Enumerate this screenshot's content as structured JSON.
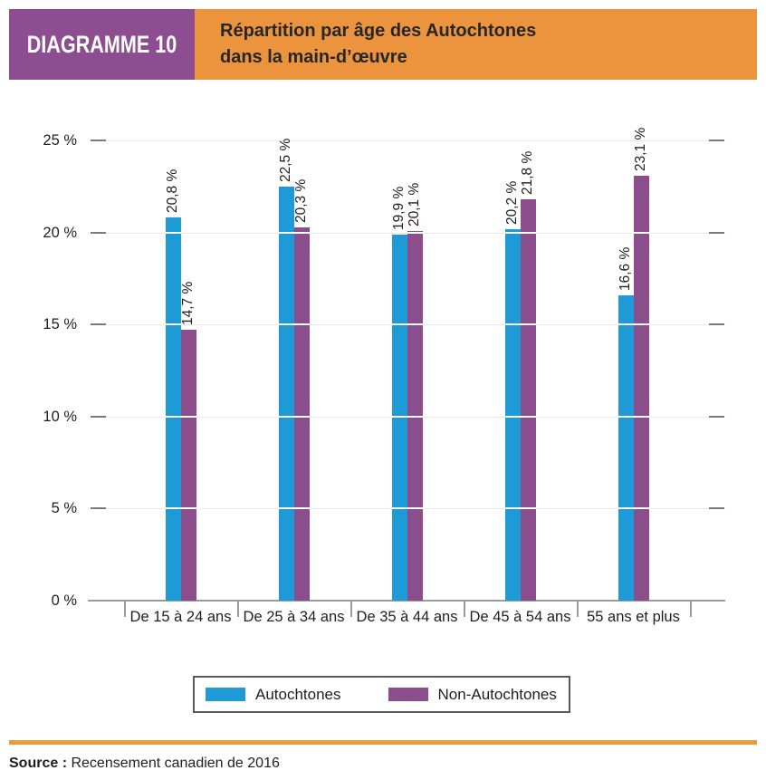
{
  "header": {
    "tag": "DIAGRAMME 10",
    "title_line1": "Répartition par âge des Autochtones",
    "title_line2": "dans la main-d’œuvre"
  },
  "chart_data": {
    "type": "bar",
    "title": "Répartition par âge des Autochtones dans la main-d’œuvre",
    "categories": [
      "De 15 à 24 ans",
      "De 25 à 34 ans",
      "De 35 à 44 ans",
      "De 45 à 54 ans",
      "55 ans et plus"
    ],
    "series": [
      {
        "name": "Autochtones",
        "color": "#1E9BD7",
        "values": [
          20.8,
          22.5,
          19.9,
          20.2,
          16.6
        ],
        "value_labels": [
          "20,8 %",
          "22,5 %",
          "19,9 %",
          "20,2 %",
          "16,6 %"
        ]
      },
      {
        "name": "Non-Autochtones",
        "color": "#8B4D8C",
        "values": [
          14.7,
          20.3,
          20.1,
          21.8,
          23.1
        ],
        "value_labels": [
          "14,7 %",
          "20,3 %",
          "20,1 %",
          "21,8 %",
          "23,1 %"
        ]
      }
    ],
    "y_ticks": [
      {
        "label": "0 %",
        "value": 0
      },
      {
        "label": "5 %",
        "value": 5
      },
      {
        "label": "10 %",
        "value": 10
      },
      {
        "label": "15 %",
        "value": 15
      },
      {
        "label": "20 %",
        "value": 20
      },
      {
        "label": "25 %",
        "value": 25
      }
    ],
    "ylim": [
      0,
      25
    ],
    "grid": true,
    "legend_position": "bottom",
    "value_label_rotation": -90
  },
  "source": {
    "label": "Source :",
    "text": "Recensement canadien de 2016"
  },
  "colors": {
    "header_tag_bg": "#8C4E90",
    "header_title_bg": "#EB943D",
    "bottom_rule": "#F0993B",
    "bar_blue": "#1E9BD7",
    "bar_purple": "#8B4D8C",
    "grid_line": "#EAEAEA",
    "axis_line": "#9B9B9B",
    "tick_dash": "#7B7B7B",
    "legend_border": "#58595B"
  }
}
